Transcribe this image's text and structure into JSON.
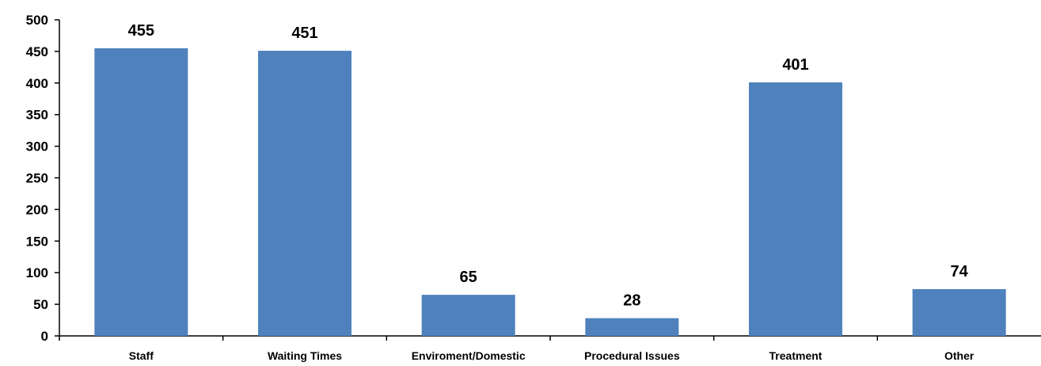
{
  "chart_data": {
    "type": "bar",
    "categories": [
      "Staff",
      "Waiting Times",
      "Enviroment/Domestic",
      "Procedural Issues",
      "Treatment",
      "Other"
    ],
    "values": [
      455,
      451,
      65,
      28,
      401,
      74
    ],
    "value_labels": [
      "455",
      "451",
      "65",
      "28",
      "401",
      "74"
    ],
    "title": "",
    "xlabel": "",
    "ylabel": "",
    "ylim": [
      0,
      500
    ],
    "yticks": [
      0,
      50,
      100,
      150,
      200,
      250,
      300,
      350,
      400,
      450,
      500
    ],
    "ytick_labels": [
      "0",
      "50",
      "100",
      "150",
      "200",
      "250",
      "300",
      "350",
      "400",
      "450",
      "500"
    ],
    "grid": false,
    "legend": "none",
    "bar_color": "#4F81BD"
  }
}
